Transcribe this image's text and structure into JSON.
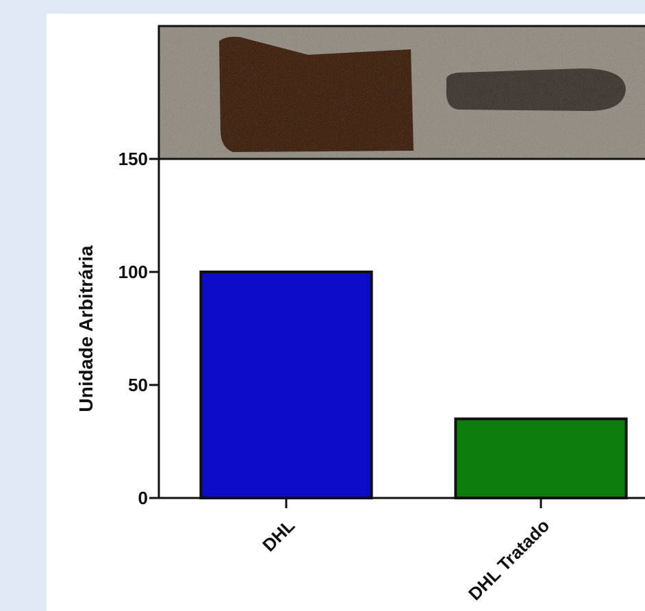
{
  "chart_data": {
    "type": "bar",
    "y_label": "Unidade Arbitrária",
    "categories": [
      "DHL",
      "DHL Tratado"
    ],
    "values": [
      100,
      35
    ],
    "colors": [
      "#0b0bc8",
      "#0a7d0a"
    ],
    "ylim": [
      0,
      150
    ],
    "yticks": [
      0,
      50,
      100,
      150
    ]
  }
}
